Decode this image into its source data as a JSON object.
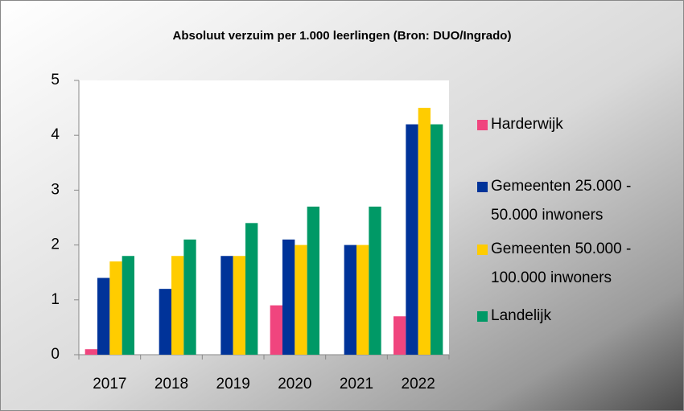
{
  "chart_data": {
    "type": "bar",
    "title": "Absoluut verzuim per 1.000 leerlingen (Bron: DUO/Ingrado)",
    "categories": [
      "2017",
      "2018",
      "2019",
      "2020",
      "2021",
      "2022"
    ],
    "series": [
      {
        "name": "Harderwijk",
        "color": "#f0457e",
        "values": [
          0.1,
          0,
          0,
          0.9,
          0,
          0.7
        ]
      },
      {
        "name": "Gemeenten 25.000 - 50.000 inwoners",
        "color": "#003399",
        "values": [
          1.4,
          1.2,
          1.8,
          2.1,
          2.0,
          4.2
        ]
      },
      {
        "name": "Gemeenten 50.000 - 100.000 inwoners",
        "color": "#ffcc00",
        "values": [
          1.7,
          1.8,
          1.8,
          2.0,
          2.0,
          4.5
        ]
      },
      {
        "name": "Landelijk",
        "color": "#009966",
        "values": [
          1.8,
          2.1,
          2.4,
          2.7,
          2.7,
          4.2
        ]
      }
    ],
    "ylim": [
      0,
      5
    ],
    "yticks": [
      0,
      1,
      2,
      3,
      4,
      5
    ],
    "grid": false,
    "legend": "right"
  }
}
